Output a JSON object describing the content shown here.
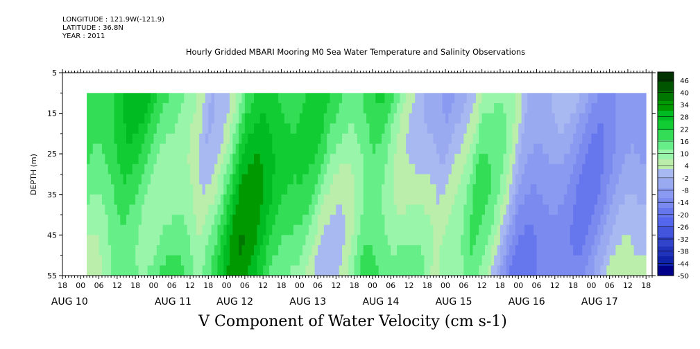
{
  "header": {
    "longitude": "LONGITUDE : 121.9W(-121.9)",
    "latitude": "LATITUDE : 36.8N",
    "year": "YEAR : 2011"
  },
  "chart_data": {
    "type": "heatmap",
    "title": "Hourly Gridded MBARI Mooring M0 Sea Water Temperature and Salinity Observations",
    "xlabel": "V Component of Water Velocity (cm s-1)",
    "ylabel": "DEPTH (m)",
    "ylim": [
      5,
      55
    ],
    "y_inverted": true,
    "y_ticks": [
      5,
      15,
      25,
      35,
      45,
      55
    ],
    "x_start": "2011-08-09 18:00",
    "x_end": "2011-08-17 20:00",
    "x_hour_ticks": [
      "18",
      "00",
      "06",
      "12",
      "18",
      "00",
      "06",
      "12",
      "18",
      "00",
      "06",
      "12",
      "18",
      "00",
      "06",
      "12",
      "18",
      "00",
      "06",
      "12",
      "18",
      "00",
      "06",
      "12",
      "18",
      "00",
      "06",
      "12",
      "18",
      "00",
      "06",
      "12",
      "18"
    ],
    "x_day_labels": [
      "AUG 10",
      "AUG 11",
      "AUG 12",
      "AUG 13",
      "AUG 14",
      "AUG 15",
      "AUG 16",
      "AUG 17"
    ],
    "data_depth_range": [
      10,
      55
    ],
    "data_time_start": "2011-08-10 02:00",
    "colorbar": {
      "range": [
        -50,
        50
      ],
      "labels": [
        "46",
        "40",
        "34",
        "28",
        "22",
        "16",
        "10",
        "4",
        "-2",
        "-8",
        "-14",
        "-20",
        "-26",
        "-32",
        "-38",
        "-44",
        "-50"
      ],
      "colors": [
        "#003300",
        "#005500",
        "#007700",
        "#009900",
        "#00bb22",
        "#11cc33",
        "#33dd55",
        "#66ee88",
        "#99f5aa",
        "#bbeeaa",
        "#a8b8f0",
        "#9aaaf0",
        "#8a9af0",
        "#7a8aee",
        "#6677ee",
        "#5566ee",
        "#4455dd",
        "#3344cc",
        "#2233bb",
        "#1122aa",
        "#000088"
      ]
    },
    "profile_times_hours_from_aug10_0000": [
      2,
      14,
      28,
      40,
      52,
      66,
      80,
      95,
      108,
      118,
      130,
      144,
      158,
      170,
      182
    ],
    "profile_values": [
      10,
      20,
      22,
      4,
      24,
      18,
      8,
      20,
      14,
      -6,
      12,
      -10,
      -8,
      -6,
      -2
    ],
    "cells_per_hour_depth_step_m": 2.5
  }
}
